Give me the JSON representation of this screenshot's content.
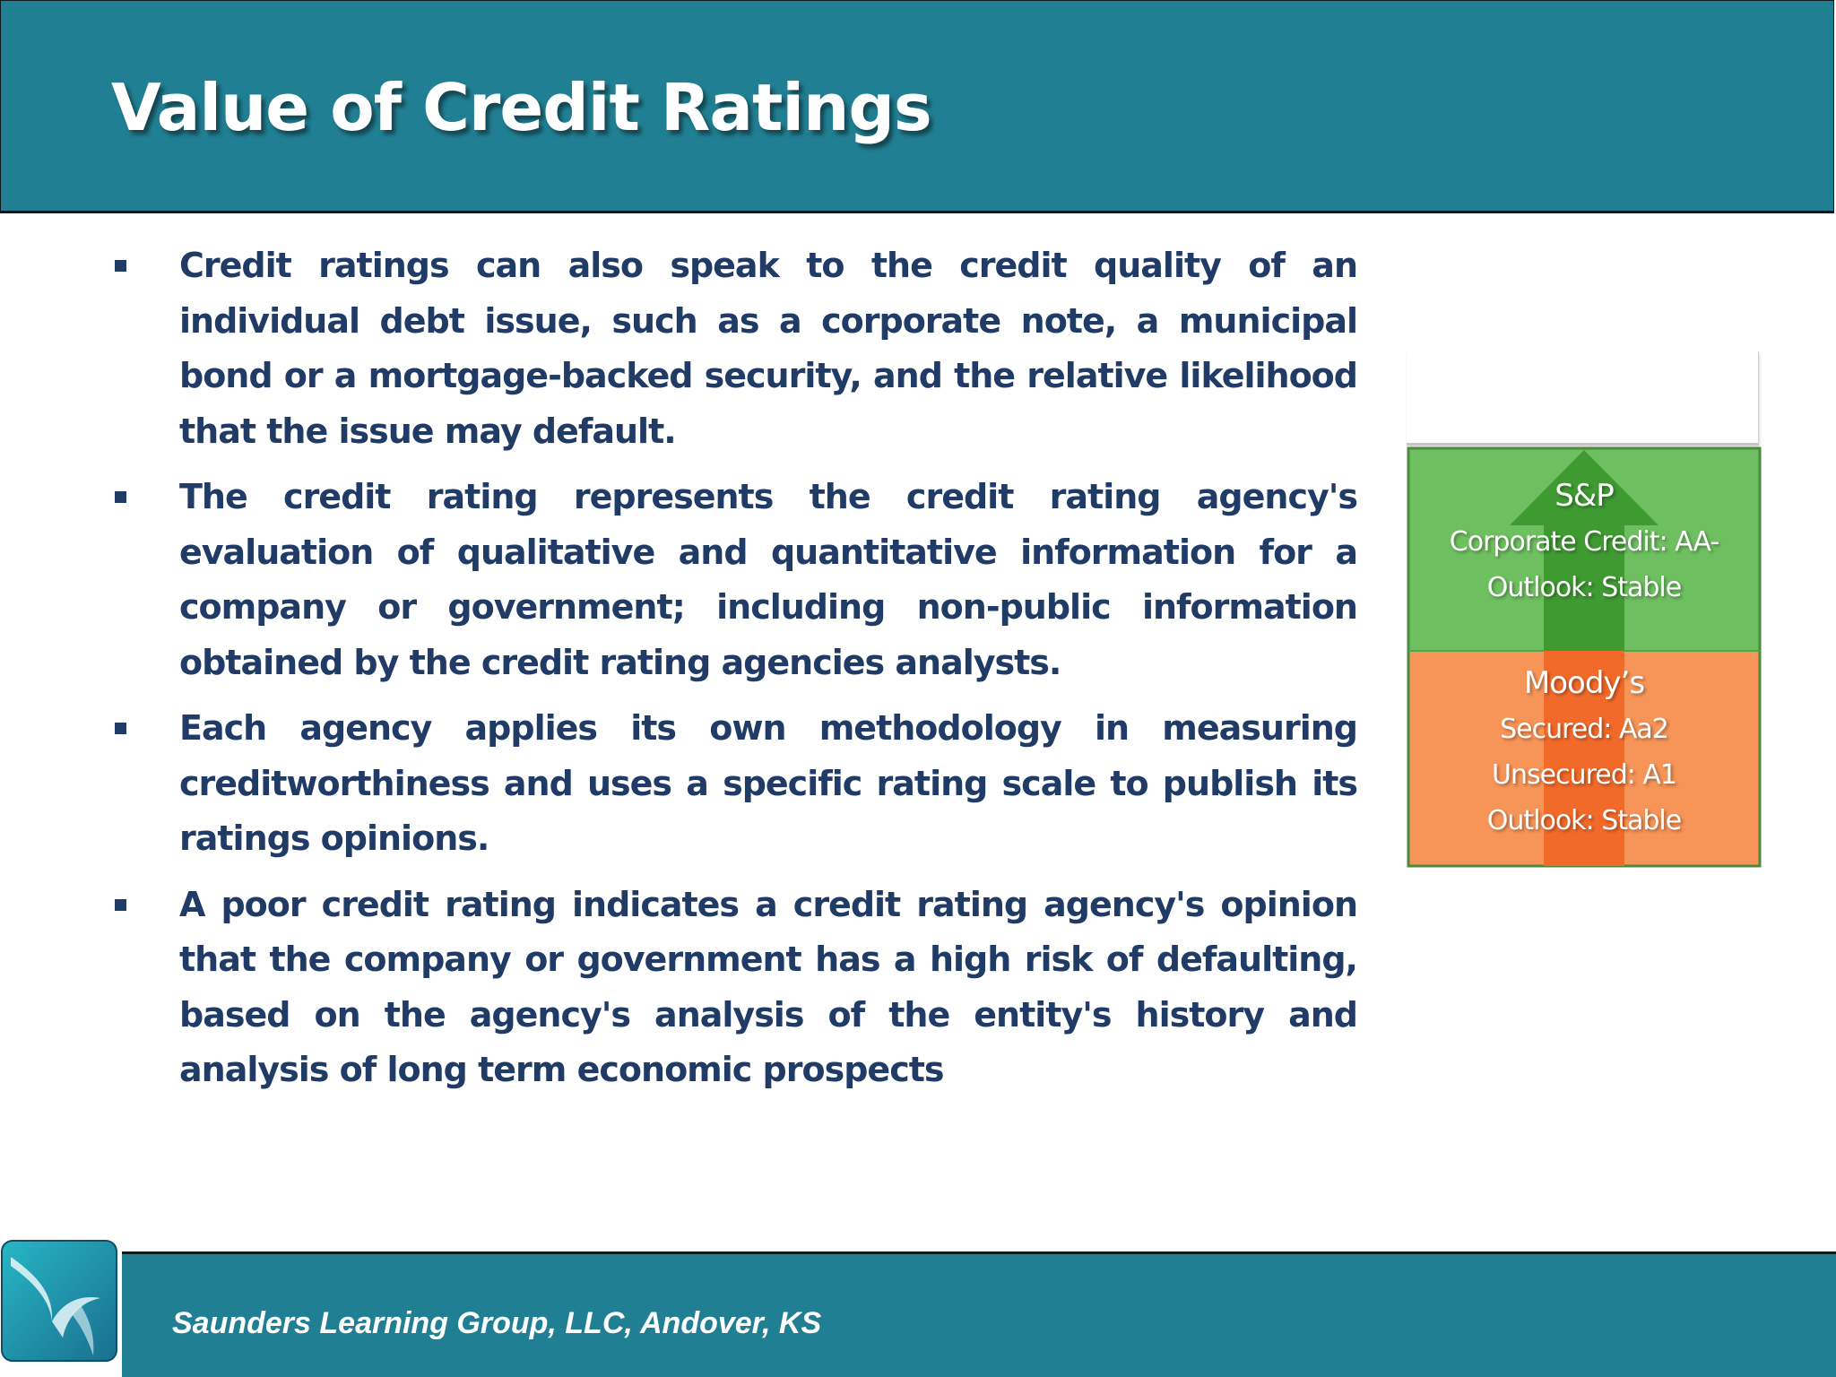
{
  "slide": {
    "title": "Value of Credit Ratings",
    "bullets": [
      "Credit ratings can also speak to the credit quality of an individual debt issue, such as a corporate note, a municipal bond or a mortgage-backed security, and the relative likelihood that the issue may default.",
      "The credit rating represents the credit rating agency's evaluation of qualitative and quantitative information for a company or government; including non-public information obtained by the credit rating agencies analysts.",
      "Each agency applies its own methodology in measuring creditworthiness and uses a specific rating scale to publish its ratings opinions.",
      "A poor credit rating indicates a credit rating agency's opinion that the company or government has a high risk of defaulting, based on the agency's analysis of the entity's history and analysis of long term economic prospects"
    ]
  },
  "graphic": {
    "sp": {
      "heading": "S&P",
      "lines": [
        "Corporate Credit: AA-",
        "Outlook: Stable"
      ]
    },
    "moodys": {
      "heading": "Moody’s",
      "lines": [
        "Secured: Aa2",
        "Unsecured: A1",
        "Outlook: Stable"
      ]
    },
    "colors": {
      "green_panel": "#6ebf60",
      "green_arrow": "#3f9a32",
      "orange_panel": "#f79457",
      "orange_arrow": "#f26a2a"
    }
  },
  "footer": {
    "text": "Saunders Learning Group, LLC, Andover, KS",
    "logo_icon": "swoosh-logo-icon"
  },
  "theme": {
    "bar_color": "#217f93",
    "text_color": "#1f3b66"
  }
}
